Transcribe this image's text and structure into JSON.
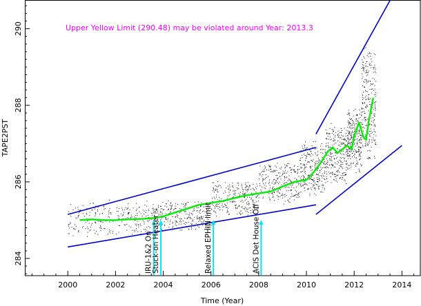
{
  "chart_data": {
    "type": "scatter",
    "title": "",
    "xlabel": "Time (Year)",
    "ylabel": "TAPE2PST",
    "xlim": [
      1998.2,
      2014.8
    ],
    "ylim": [
      283.55,
      290.75
    ],
    "xticks": [
      2000,
      2002,
      2004,
      2006,
      2008,
      2010,
      2012,
      2014
    ],
    "yticks": [
      284,
      286,
      288,
      290
    ],
    "grid": false,
    "annotation": "Upper Yellow  Limit (290.48) may be violated around Year: 2013.3",
    "colors": {
      "data": "#000000",
      "trend": "#00ee00",
      "envelope": "#0000cc",
      "annotation": "#ff00ff",
      "event_marker": "#00e5ee"
    },
    "events": [
      {
        "x": 2003.6,
        "label": "IRU-1&2 On"
      },
      {
        "x": 2003.9,
        "label": "Stuck-on Heater"
      },
      {
        "x": 2006.1,
        "label": "Relaxed EPHIN limit"
      },
      {
        "x": 2008.1,
        "label": "ACIS Det House Off"
      }
    ],
    "trend": {
      "name": "smoothed trend",
      "x": [
        2000.5,
        2001.0,
        2001.5,
        2002.0,
        2002.5,
        2003.0,
        2003.5,
        2004.0,
        2004.5,
        2005.0,
        2005.5,
        2006.0,
        2006.5,
        2007.0,
        2007.5,
        2008.0,
        2008.5,
        2009.0,
        2009.5,
        2010.0,
        2010.3,
        2010.6,
        2010.9,
        2011.1,
        2011.3,
        2011.5,
        2011.7,
        2011.9,
        2012.0,
        2012.2,
        2012.4,
        2012.5,
        2012.6,
        2012.8
      ],
      "y": [
        285.0,
        285.02,
        285.0,
        285.0,
        285.02,
        285.03,
        285.05,
        285.1,
        285.2,
        285.3,
        285.4,
        285.45,
        285.5,
        285.58,
        285.65,
        285.7,
        285.75,
        285.88,
        286.0,
        286.05,
        286.25,
        286.5,
        286.8,
        286.9,
        286.75,
        286.85,
        286.95,
        286.85,
        287.2,
        287.55,
        287.15,
        287.1,
        287.55,
        288.2
      ]
    },
    "limit_lines": [
      {
        "name": "lower envelope 2000-2010",
        "x": [
          2000.0,
          2010.4
        ],
        "y": [
          284.3,
          285.4
        ]
      },
      {
        "name": "upper envelope 2000-2010",
        "x": [
          2000.0,
          2010.4
        ],
        "y": [
          285.15,
          286.9
        ]
      },
      {
        "name": "upper envelope 2010-2013",
        "x": [
          2010.4,
          2013.6
        ],
        "y": [
          287.25,
          290.85
        ]
      },
      {
        "name": "lower envelope 2010-2014",
        "x": [
          2010.4,
          2014.0
        ],
        "y": [
          285.15,
          286.95
        ]
      }
    ],
    "scatter_bands": [
      {
        "x": [
          2000.0,
          2003.6
        ],
        "y": [
          284.55,
          285.55
        ]
      },
      {
        "x": [
          2003.6,
          2006.0
        ],
        "y": [
          284.7,
          285.55
        ]
      },
      {
        "x": [
          2006.0,
          2008.0
        ],
        "y": [
          285.1,
          286.05
        ]
      },
      {
        "x": [
          2008.0,
          2009.7
        ],
        "y": [
          285.4,
          286.55
        ]
      },
      {
        "x": [
          2009.7,
          2010.8
        ],
        "y": [
          285.6,
          287.1
        ]
      },
      {
        "x": [
          2010.8,
          2011.7
        ],
        "y": [
          285.9,
          287.6
        ]
      },
      {
        "x": [
          2011.7,
          2012.3
        ],
        "y": [
          286.2,
          288.0
        ]
      },
      {
        "x": [
          2012.3,
          2012.9
        ],
        "y": [
          286.5,
          289.6
        ]
      }
    ]
  }
}
